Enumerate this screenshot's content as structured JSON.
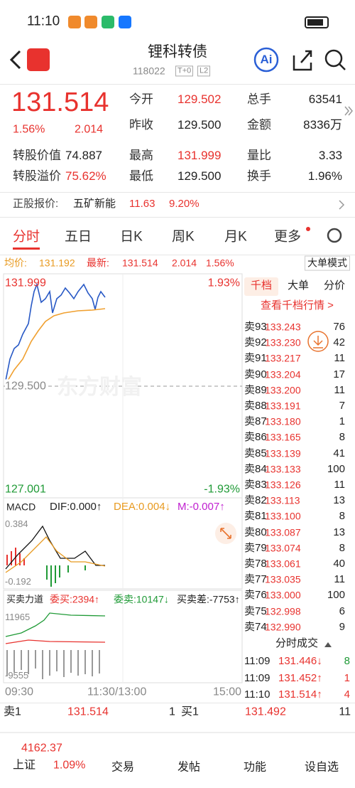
{
  "status_bar": {
    "time": "11:10"
  },
  "header": {
    "title": "锂科转债",
    "code": "118022",
    "badges": [
      "T+0",
      "L2"
    ],
    "ai_button": "Ai"
  },
  "quote": {
    "price": "131.514",
    "change_percent": "1.56%",
    "change": "2.014",
    "stats": [
      {
        "label": "今开",
        "value": "129.502"
      },
      {
        "label": "总手",
        "value": "63541"
      },
      {
        "label": "昨收",
        "value": "129.500"
      },
      {
        "label": "金额",
        "value": "8336万"
      },
      {
        "label": "最高",
        "value": "131.999"
      },
      {
        "label": "量比",
        "value": "3.33"
      },
      {
        "label": "最低",
        "value": "129.500"
      },
      {
        "label": "换手",
        "value": "1.96%"
      }
    ],
    "conversion": [
      {
        "label": "转股价值",
        "value": "74.887"
      },
      {
        "label": "转股溢价",
        "value": "75.62%"
      }
    ]
  },
  "underlying": {
    "label": "正股报价:",
    "name": "五矿新能",
    "price": "11.63",
    "change_percent": "9.20%"
  },
  "tabs": [
    "分时",
    "五日",
    "日K",
    "周K",
    "月K",
    "更多"
  ],
  "info_line": {
    "avg_label": "均价:",
    "avg": "131.192",
    "last_label": "最新:",
    "last": "131.514",
    "change": "2.014",
    "change_percent": "1.56%",
    "mode_button": "大单模式"
  },
  "intraday": {
    "high": "131.999",
    "high_percent": "1.93%",
    "prev_close": "129.500",
    "low": "127.001",
    "low_percent": "-1.93%",
    "watermark": "东方财富"
  },
  "macd": {
    "name": "MACD",
    "dif": "DIF:0.000↑",
    "dea": "DEA:0.004↓",
    "m": "M:-0.007↑",
    "max": "0.384",
    "min": "-0.192"
  },
  "power": {
    "name": "买卖力道",
    "bid": "委买:2394↑",
    "ask": "委卖:10147↓",
    "diff": "买卖差:-7753↑",
    "max": "11965",
    "min": "-9555"
  },
  "time_axis": [
    "09:30",
    "11:30/13:00",
    "15:00"
  ],
  "order_book": {
    "tabs": [
      "千档",
      "大单",
      "分价"
    ],
    "link": "查看千档行情 >",
    "asks": [
      [
        "卖93",
        "133.243",
        "76"
      ],
      [
        "卖92",
        "133.230",
        "42"
      ],
      [
        "卖91",
        "133.217",
        "11"
      ],
      [
        "卖90",
        "133.204",
        "17"
      ],
      [
        "卖89",
        "133.200",
        "11"
      ],
      [
        "卖88",
        "133.191",
        "7"
      ],
      [
        "卖87",
        "133.180",
        "1"
      ],
      [
        "卖86",
        "133.165",
        "8"
      ],
      [
        "卖85",
        "133.139",
        "41"
      ],
      [
        "卖84",
        "133.133",
        "100"
      ],
      [
        "卖83",
        "133.126",
        "11"
      ],
      [
        "卖82",
        "133.113",
        "13"
      ],
      [
        "卖81",
        "133.100",
        "8"
      ],
      [
        "卖80",
        "133.087",
        "13"
      ],
      [
        "卖79",
        "133.074",
        "8"
      ],
      [
        "卖78",
        "133.061",
        "40"
      ],
      [
        "卖77",
        "133.035",
        "11"
      ],
      [
        "卖76",
        "133.000",
        "100"
      ],
      [
        "卖75",
        "132.998",
        "6"
      ],
      [
        "卖74",
        "132.990",
        "9"
      ]
    ]
  },
  "trades": {
    "title": "分时成交",
    "rows": [
      [
        "11:09",
        "131.446↓",
        "8"
      ],
      [
        "11:09",
        "131.452↑",
        "1"
      ],
      [
        "11:10",
        "131.514↑",
        "4"
      ]
    ]
  },
  "level1": {
    "ask_label": "卖1",
    "ask_price": "131.514",
    "ask_volume": "1",
    "bid_label": "买1",
    "bid_price": "131.492",
    "bid_volume": "11"
  },
  "bottom_nav": {
    "index_value": "4162.37",
    "index_name": "上证",
    "index_change": "1.09%",
    "items": [
      "交易",
      "发帖",
      "功能",
      "设自选"
    ]
  }
}
